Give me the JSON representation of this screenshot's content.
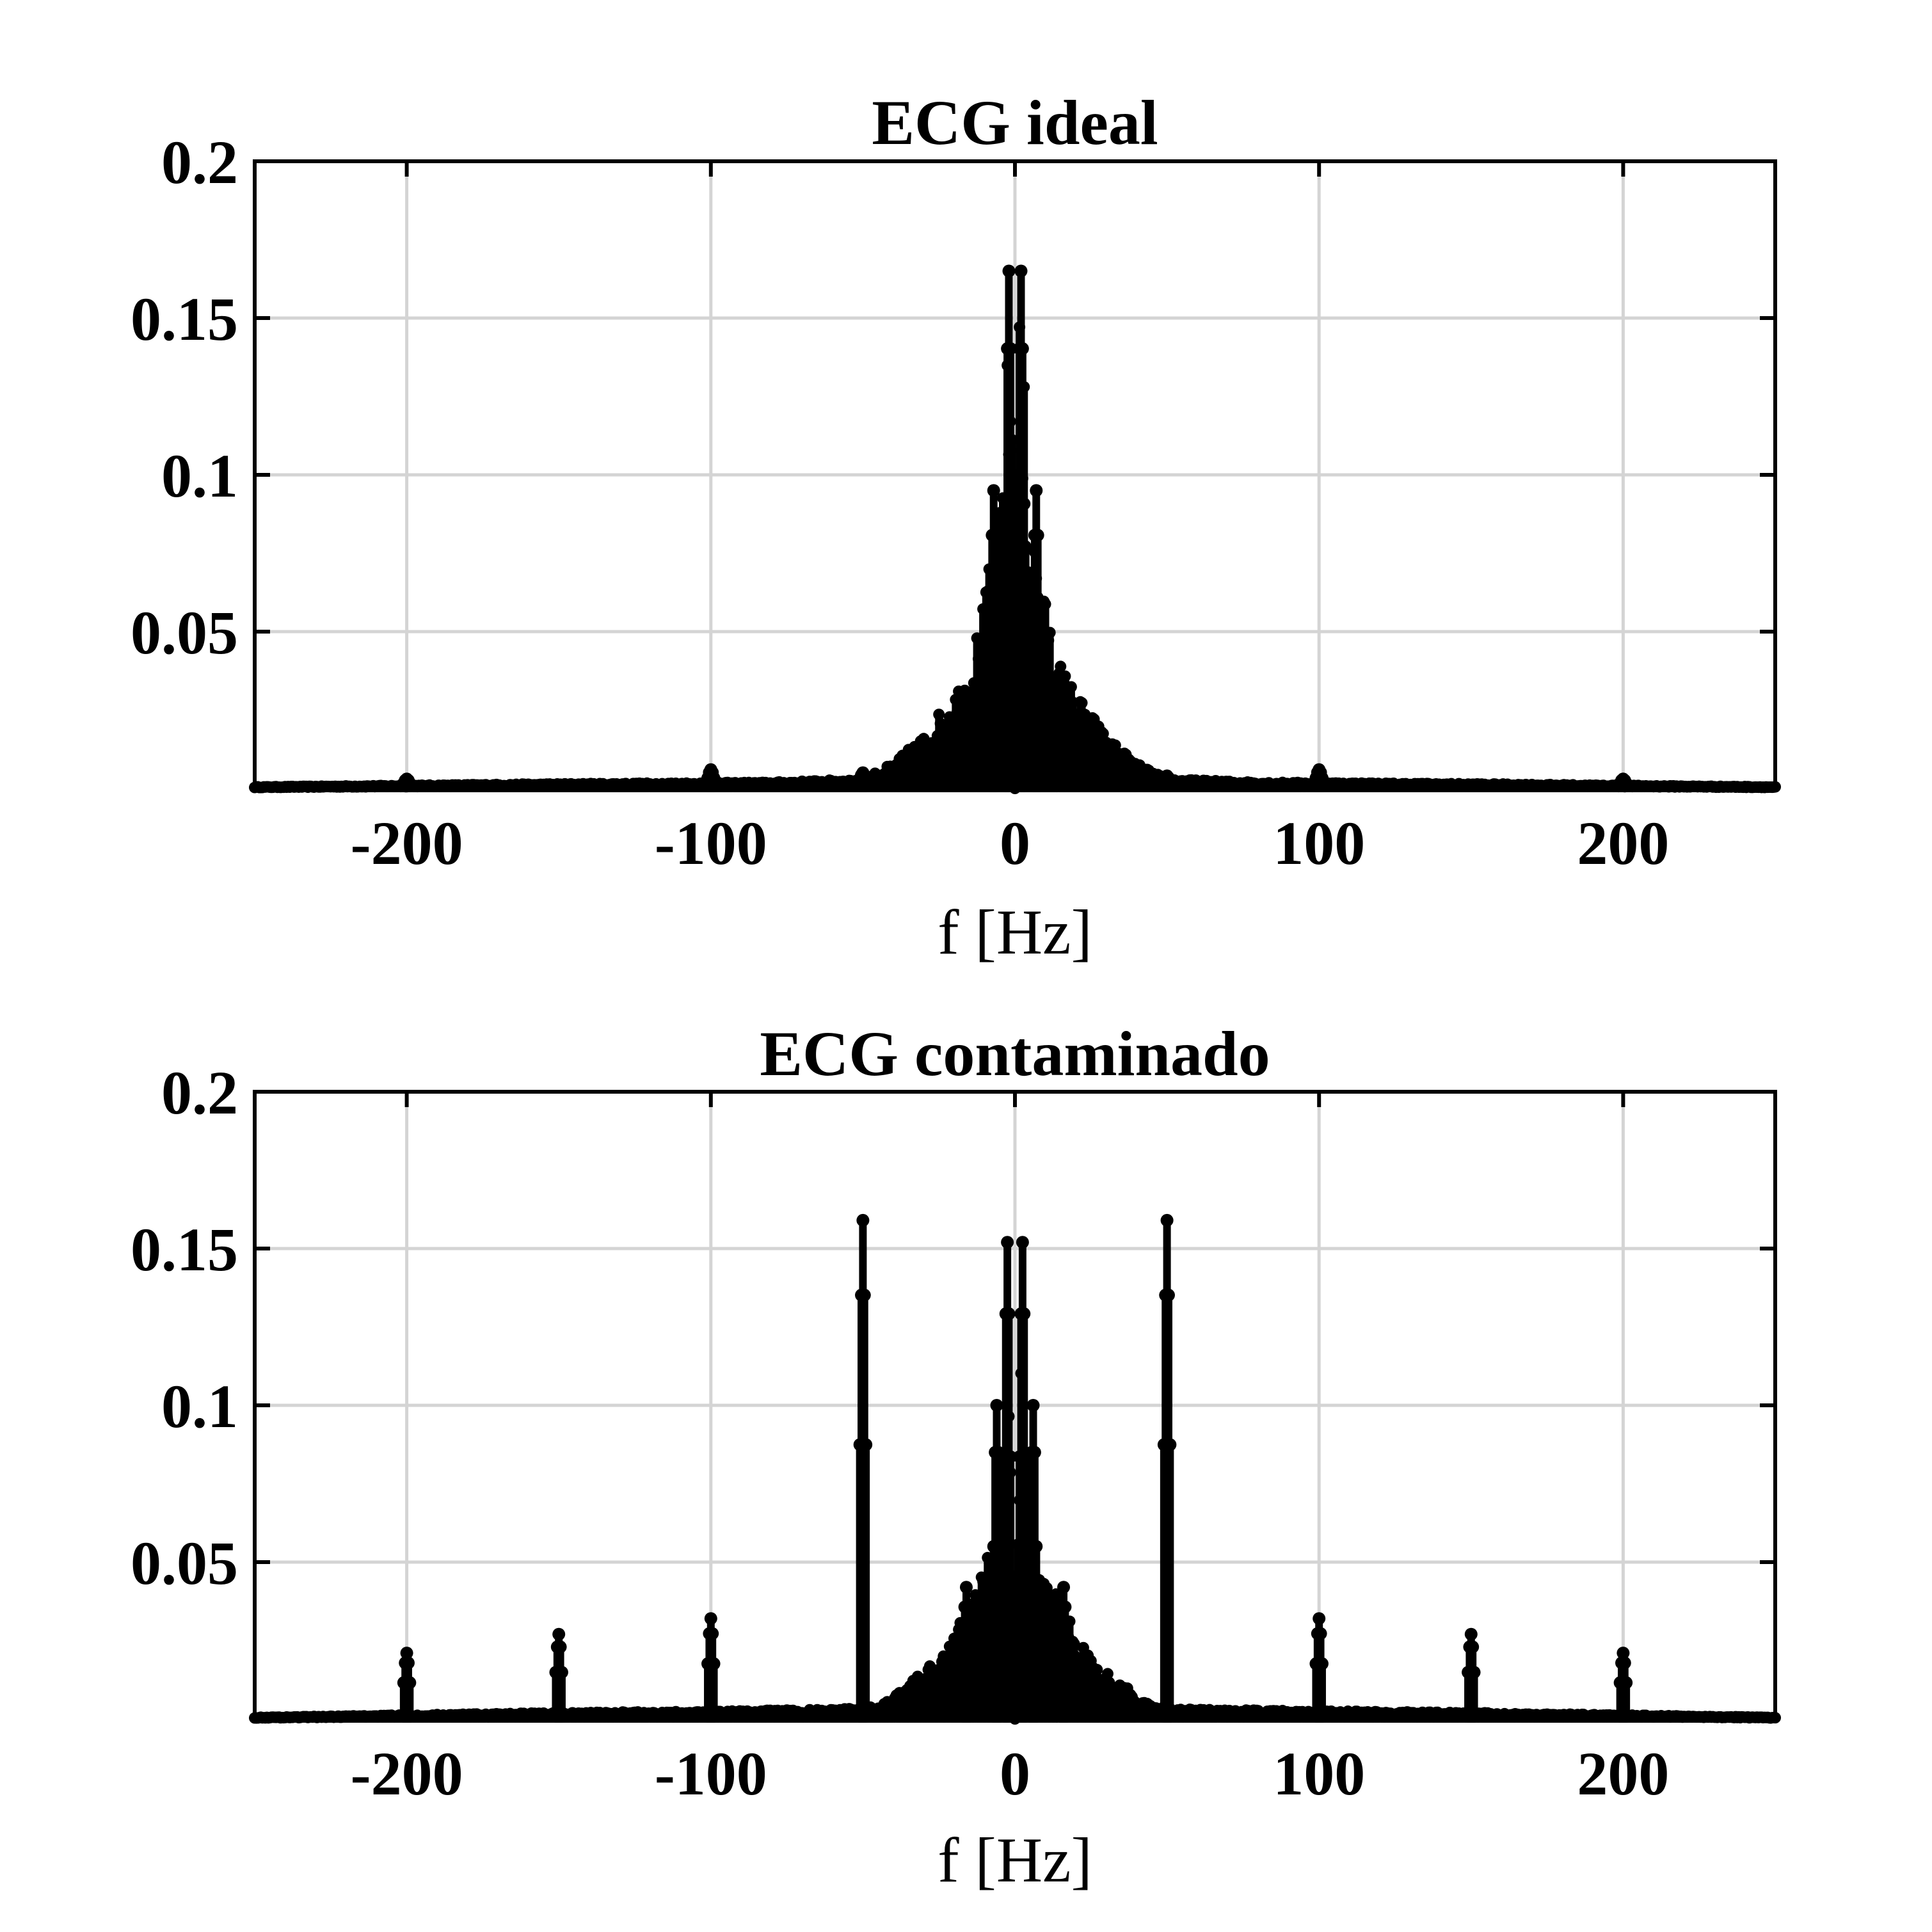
{
  "chart_data": [
    {
      "type": "stem",
      "title": "ECG ideal",
      "xlabel": "f [Hz]",
      "ylabel": "",
      "xlim": [
        -250,
        250
      ],
      "ylim": [
        0,
        0.2
      ],
      "xticks": [
        -200,
        -100,
        0,
        100,
        200
      ],
      "xtick_labels": [
        "-200",
        "-100",
        "0",
        "100",
        "200"
      ],
      "yticks": [
        0.05,
        0.1,
        0.15,
        0.2
      ],
      "ytick_labels": [
        "0.05",
        "0.1",
        "0.15",
        "0.2"
      ],
      "grid": true,
      "color": "#000000",
      "peaks": [
        {
          "f": -2,
          "value": 0.165
        },
        {
          "f": 2,
          "value": 0.165
        },
        {
          "f": -7,
          "value": 0.095
        },
        {
          "f": 7,
          "value": 0.095
        },
        {
          "f": -100,
          "value": 0.006
        },
        {
          "f": 100,
          "value": 0.006
        },
        {
          "f": -50,
          "value": 0.005
        },
        {
          "f": 50,
          "value": 0.004
        },
        {
          "f": -200,
          "value": 0.003
        },
        {
          "f": 200,
          "value": 0.003
        }
      ],
      "envelope": [
        [
          -250,
          0.0005
        ],
        [
          -150,
          0.0015
        ],
        [
          -80,
          0.002
        ],
        [
          -50,
          0.003
        ],
        [
          -40,
          0.008
        ],
        [
          -30,
          0.017
        ],
        [
          -25,
          0.024
        ],
        [
          -20,
          0.031
        ],
        [
          -15,
          0.04
        ],
        [
          -12,
          0.052
        ],
        [
          -10,
          0.06
        ],
        [
          -8,
          0.075
        ],
        [
          -5,
          0.09
        ],
        [
          -3,
          0.13
        ],
        [
          -1,
          0.16
        ],
        [
          0,
          0.0
        ],
        [
          1,
          0.16
        ],
        [
          3,
          0.13
        ],
        [
          5,
          0.09
        ],
        [
          8,
          0.075
        ],
        [
          10,
          0.06
        ],
        [
          12,
          0.052
        ],
        [
          15,
          0.04
        ],
        [
          20,
          0.031
        ],
        [
          25,
          0.024
        ],
        [
          30,
          0.017
        ],
        [
          40,
          0.008
        ],
        [
          50,
          0.003
        ],
        [
          80,
          0.002
        ],
        [
          150,
          0.0015
        ],
        [
          250,
          0.0005
        ]
      ]
    },
    {
      "type": "stem",
      "title": "ECG contaminado",
      "xlabel": "f [Hz]",
      "ylabel": "",
      "xlim": [
        -250,
        250
      ],
      "ylim": [
        0,
        0.2
      ],
      "xticks": [
        -200,
        -100,
        0,
        100,
        200
      ],
      "xtick_labels": [
        "-200",
        "-100",
        "0",
        "100",
        "200"
      ],
      "yticks": [
        0.05,
        0.1,
        0.15,
        0.2
      ],
      "ytick_labels": [
        "0.05",
        "0.1",
        "0.15",
        "0.2"
      ],
      "grid": true,
      "color": "#000000",
      "peaks": [
        {
          "f": -50,
          "value": 0.159
        },
        {
          "f": 50,
          "value": 0.159
        },
        {
          "f": -2.5,
          "value": 0.152
        },
        {
          "f": 2.5,
          "value": 0.152
        },
        {
          "f": -100,
          "value": 0.032
        },
        {
          "f": 100,
          "value": 0.032
        },
        {
          "f": -150,
          "value": 0.027
        },
        {
          "f": 150,
          "value": 0.027
        },
        {
          "f": -200,
          "value": 0.021
        },
        {
          "f": 200,
          "value": 0.021
        },
        {
          "f": -16,
          "value": 0.042
        },
        {
          "f": 16,
          "value": 0.042
        },
        {
          "f": -6,
          "value": 0.1
        },
        {
          "f": 6,
          "value": 0.1
        }
      ],
      "envelope": [
        [
          -250,
          0.0005
        ],
        [
          -150,
          0.002
        ],
        [
          -60,
          0.003
        ],
        [
          -45,
          0.004
        ],
        [
          -40,
          0.007
        ],
        [
          -35,
          0.012
        ],
        [
          -30,
          0.015
        ],
        [
          -25,
          0.02
        ],
        [
          -20,
          0.028
        ],
        [
          -15,
          0.038
        ],
        [
          -10,
          0.052
        ],
        [
          -6,
          0.062
        ],
        [
          -4,
          0.08
        ],
        [
          -2,
          0.12
        ],
        [
          0,
          0.0
        ],
        [
          2,
          0.12
        ],
        [
          4,
          0.08
        ],
        [
          6,
          0.062
        ],
        [
          10,
          0.052
        ],
        [
          15,
          0.038
        ],
        [
          20,
          0.028
        ],
        [
          25,
          0.02
        ],
        [
          30,
          0.015
        ],
        [
          35,
          0.012
        ],
        [
          40,
          0.007
        ],
        [
          45,
          0.004
        ],
        [
          60,
          0.003
        ],
        [
          150,
          0.002
        ],
        [
          250,
          0.0005
        ]
      ]
    }
  ]
}
